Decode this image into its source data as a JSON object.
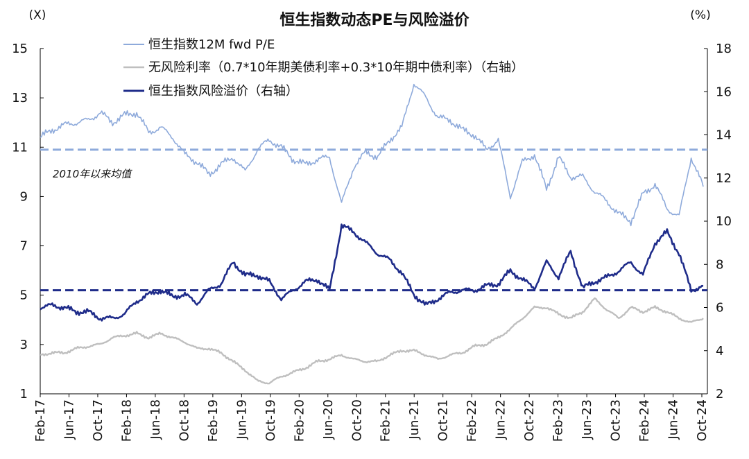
{
  "chart_data": {
    "type": "line",
    "title": "恒生指数动态PE与风险溢价",
    "left_unit": "(X)",
    "right_unit": "(%)",
    "x_labels": [
      "Feb-17",
      "Jun-17",
      "Oct-17",
      "Feb-18",
      "Jun-18",
      "Oct-18",
      "Feb-19",
      "Jun-19",
      "Oct-19",
      "Feb-20",
      "Jun-20",
      "Oct-20",
      "Feb-21",
      "Jun-21",
      "Oct-21",
      "Feb-22",
      "Jun-22",
      "Oct-22",
      "Feb-23",
      "Jun-23",
      "Oct-23",
      "Feb-24",
      "Jun-24",
      "Oct-24"
    ],
    "y_left": {
      "min": 1,
      "max": 15,
      "ticks": [
        1,
        3,
        5,
        7,
        9,
        11,
        13,
        15
      ]
    },
    "y_right": {
      "min": 2,
      "max": 18,
      "ticks": [
        2,
        4,
        6,
        8,
        10,
        12,
        14,
        16,
        18
      ]
    },
    "series": [
      {
        "name": "恒生指数12M fwd P/E",
        "axis": "left",
        "color": "#8eaadb",
        "values": [
          11.4,
          11.7,
          11.9,
          12.0,
          12.1,
          12.4,
          12.0,
          12.3,
          12.4,
          11.6,
          11.8,
          11.4,
          10.7,
          10.4,
          9.9,
          10.3,
          10.6,
          10.0,
          10.9,
          11.3,
          11.0,
          10.5,
          10.3,
          10.5,
          10.6,
          8.7,
          10.2,
          10.8,
          10.6,
          11.3,
          11.8,
          13.6,
          13.0,
          12.2,
          12.1,
          11.7,
          11.5,
          10.9,
          11.3,
          9.0,
          10.4,
          10.7,
          9.3,
          10.6,
          9.8,
          9.8,
          9.2,
          8.8,
          8.3,
          8.0,
          9.1,
          9.5,
          8.5,
          8.2,
          10.6,
          9.4
        ]
      },
      {
        "name": "无风险利率（0.7*10年期美债利率+0.3*10年期中债利率）（右轴）",
        "axis": "right",
        "color": "#bfbfbf",
        "values": [
          3.8,
          3.9,
          3.9,
          4.1,
          4.2,
          4.3,
          4.6,
          4.7,
          4.8,
          4.6,
          4.8,
          4.6,
          4.4,
          4.1,
          4.1,
          3.9,
          3.5,
          3.1,
          2.6,
          2.5,
          2.8,
          3.0,
          3.2,
          3.5,
          3.6,
          3.8,
          3.6,
          3.5,
          3.5,
          3.8,
          4.0,
          4.0,
          3.8,
          3.6,
          3.8,
          3.9,
          4.2,
          4.3,
          4.6,
          5.0,
          5.5,
          6.0,
          6.0,
          5.7,
          5.5,
          5.8,
          6.4,
          5.9,
          5.5,
          6.0,
          5.8,
          6.0,
          5.8,
          5.5,
          5.3,
          5.5
        ]
      },
      {
        "name": "恒生指数风险溢价（右轴）",
        "axis": "right",
        "color": "#1f2c8a",
        "values": [
          6.0,
          6.1,
          6.0,
          5.8,
          5.8,
          5.5,
          5.5,
          5.7,
          6.3,
          6.6,
          6.8,
          6.5,
          6.6,
          6.2,
          6.8,
          7.1,
          8.1,
          7.5,
          7.5,
          7.2,
          6.4,
          6.8,
          7.2,
          7.3,
          6.8,
          9.8,
          9.5,
          9.0,
          8.5,
          8.2,
          7.6,
          6.6,
          6.1,
          6.4,
          6.7,
          6.8,
          6.8,
          7.0,
          7.1,
          7.7,
          7.3,
          6.9,
          8.1,
          7.4,
          8.6,
          6.9,
          7.2,
          7.4,
          7.7,
          8.1,
          7.5,
          9.0,
          9.5,
          8.5,
          6.8,
          7.0
        ]
      }
    ],
    "reference_lines": [
      {
        "label": "2010年以来均值",
        "axis": "left",
        "value": 10.9,
        "color": "#8eaadb"
      },
      {
        "axis": "right",
        "value": 6.8,
        "color": "#1f2c8a"
      }
    ],
    "legend_position": "top-left"
  }
}
